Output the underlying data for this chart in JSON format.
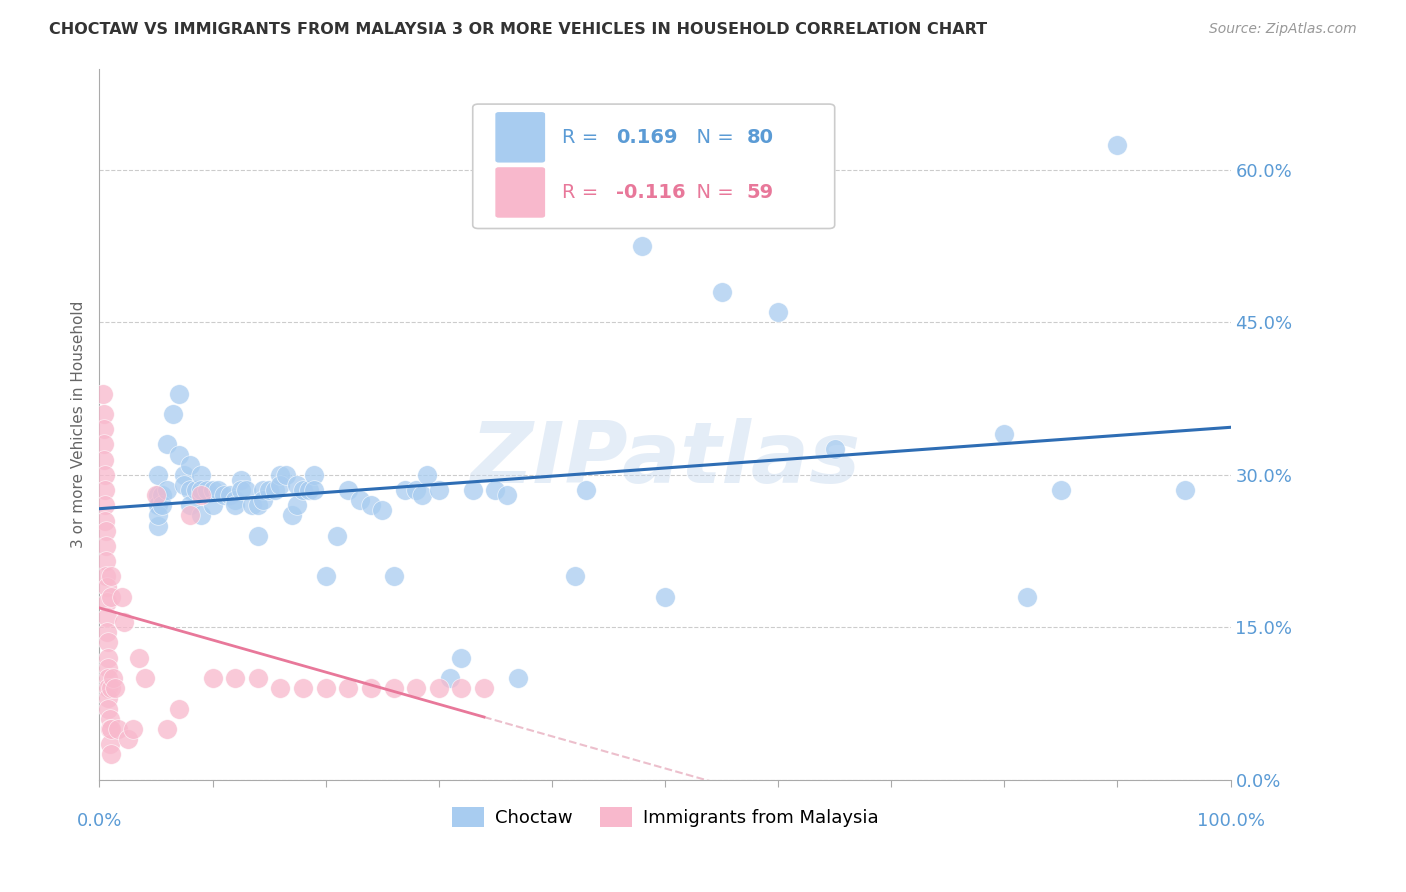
{
  "title": "CHOCTAW VS IMMIGRANTS FROM MALAYSIA 3 OR MORE VEHICLES IN HOUSEHOLD CORRELATION CHART",
  "source": "Source: ZipAtlas.com",
  "ylabel": "3 or more Vehicles in Household",
  "xlim": [
    0,
    1.0
  ],
  "ylim": [
    0,
    0.7
  ],
  "yticks": [
    0.0,
    0.15,
    0.3,
    0.45,
    0.6
  ],
  "xticks": [
    0.0,
    0.1,
    0.2,
    0.3,
    0.4,
    0.5,
    0.6,
    0.7,
    0.8,
    0.9,
    1.0
  ],
  "choctaw_color": "#A8CCF0",
  "malaysia_color": "#F8B8CC",
  "trendline_choctaw_color": "#2E6DB4",
  "trendline_malaysia_color": "#E8789A",
  "trendline_malaysia_dashed_color": "#E8B0C0",
  "watermark": "ZIPatlas",
  "R_choctaw": 0.169,
  "N_choctaw": 80,
  "R_malaysia": -0.116,
  "N_malaysia": 59,
  "choctaw_x": [
    0.052,
    0.052,
    0.052,
    0.052,
    0.052,
    0.052,
    0.055,
    0.055,
    0.06,
    0.06,
    0.065,
    0.07,
    0.07,
    0.075,
    0.075,
    0.08,
    0.08,
    0.08,
    0.085,
    0.09,
    0.09,
    0.09,
    0.095,
    0.1,
    0.1,
    0.105,
    0.11,
    0.115,
    0.12,
    0.12,
    0.125,
    0.125,
    0.13,
    0.135,
    0.14,
    0.14,
    0.145,
    0.145,
    0.15,
    0.155,
    0.16,
    0.16,
    0.165,
    0.17,
    0.175,
    0.175,
    0.18,
    0.185,
    0.19,
    0.19,
    0.2,
    0.21,
    0.22,
    0.23,
    0.24,
    0.25,
    0.26,
    0.27,
    0.28,
    0.285,
    0.29,
    0.3,
    0.31,
    0.32,
    0.33,
    0.35,
    0.36,
    0.37,
    0.42,
    0.43,
    0.5,
    0.55,
    0.6,
    0.65,
    0.8,
    0.82,
    0.85,
    0.9,
    0.96,
    0.48
  ],
  "choctaw_y": [
    0.27,
    0.28,
    0.3,
    0.27,
    0.25,
    0.26,
    0.28,
    0.27,
    0.33,
    0.285,
    0.36,
    0.38,
    0.32,
    0.3,
    0.29,
    0.31,
    0.285,
    0.27,
    0.285,
    0.3,
    0.285,
    0.26,
    0.285,
    0.285,
    0.27,
    0.285,
    0.28,
    0.28,
    0.275,
    0.27,
    0.295,
    0.285,
    0.285,
    0.27,
    0.24,
    0.27,
    0.285,
    0.275,
    0.285,
    0.285,
    0.3,
    0.29,
    0.3,
    0.26,
    0.29,
    0.27,
    0.285,
    0.285,
    0.3,
    0.285,
    0.2,
    0.24,
    0.285,
    0.275,
    0.27,
    0.265,
    0.2,
    0.285,
    0.285,
    0.28,
    0.3,
    0.285,
    0.1,
    0.12,
    0.285,
    0.285,
    0.28,
    0.1,
    0.2,
    0.285,
    0.18,
    0.48,
    0.46,
    0.325,
    0.34,
    0.18,
    0.285,
    0.625,
    0.285,
    0.525
  ],
  "malaysia_x": [
    0.003,
    0.004,
    0.004,
    0.004,
    0.004,
    0.005,
    0.005,
    0.005,
    0.005,
    0.006,
    0.006,
    0.006,
    0.006,
    0.007,
    0.007,
    0.007,
    0.007,
    0.008,
    0.008,
    0.008,
    0.008,
    0.008,
    0.008,
    0.008,
    0.009,
    0.009,
    0.009,
    0.01,
    0.01,
    0.01,
    0.01,
    0.01,
    0.012,
    0.014,
    0.016,
    0.02,
    0.022,
    0.025,
    0.03,
    0.035,
    0.04,
    0.05,
    0.06,
    0.07,
    0.08,
    0.09,
    0.1,
    0.12,
    0.14,
    0.16,
    0.18,
    0.2,
    0.22,
    0.24,
    0.26,
    0.28,
    0.3,
    0.32,
    0.34
  ],
  "malaysia_y": [
    0.38,
    0.36,
    0.345,
    0.33,
    0.315,
    0.3,
    0.285,
    0.27,
    0.255,
    0.245,
    0.23,
    0.215,
    0.2,
    0.19,
    0.175,
    0.16,
    0.145,
    0.135,
    0.12,
    0.11,
    0.1,
    0.09,
    0.08,
    0.07,
    0.06,
    0.05,
    0.035,
    0.025,
    0.05,
    0.09,
    0.18,
    0.2,
    0.1,
    0.09,
    0.05,
    0.18,
    0.155,
    0.04,
    0.05,
    0.12,
    0.1,
    0.28,
    0.05,
    0.07,
    0.26,
    0.28,
    0.1,
    0.1,
    0.1,
    0.09,
    0.09,
    0.09,
    0.09,
    0.09,
    0.09,
    0.09,
    0.09,
    0.09,
    0.09
  ],
  "background_color": "#FFFFFF",
  "grid_color": "#CCCCCC"
}
